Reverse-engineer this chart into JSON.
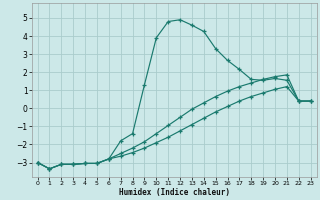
{
  "xlabel": "Humidex (Indice chaleur)",
  "xlim": [
    -0.5,
    23.5
  ],
  "ylim": [
    -3.8,
    5.8
  ],
  "xticks": [
    0,
    1,
    2,
    3,
    4,
    5,
    6,
    7,
    8,
    9,
    10,
    11,
    12,
    13,
    14,
    15,
    16,
    17,
    18,
    19,
    20,
    21,
    22,
    23
  ],
  "yticks": [
    -3,
    -2,
    -1,
    0,
    1,
    2,
    3,
    4,
    5
  ],
  "bg_color": "#cce8e8",
  "grid_color": "#aacccc",
  "line_color": "#1a7a6e",
  "line1_x": [
    0,
    1,
    2,
    3,
    4,
    5,
    6,
    7,
    8,
    9,
    10,
    11,
    12,
    13,
    14,
    15,
    16,
    17,
    18,
    19,
    20,
    21,
    22,
    23
  ],
  "line1_y": [
    -3.0,
    -3.35,
    -3.1,
    -3.1,
    -3.05,
    -3.05,
    -2.8,
    -1.8,
    -1.4,
    1.3,
    3.9,
    4.8,
    4.9,
    4.6,
    4.25,
    3.3,
    2.65,
    2.15,
    1.6,
    1.55,
    1.65,
    1.55,
    0.4,
    0.4
  ],
  "line2_x": [
    0,
    1,
    2,
    3,
    4,
    5,
    6,
    7,
    8,
    9,
    10,
    11,
    12,
    13,
    14,
    15,
    16,
    17,
    18,
    19,
    20,
    21,
    22,
    23
  ],
  "line2_y": [
    -3.0,
    -3.35,
    -3.1,
    -3.1,
    -3.05,
    -3.05,
    -2.8,
    -2.5,
    -2.2,
    -1.85,
    -1.4,
    -0.95,
    -0.5,
    -0.05,
    0.3,
    0.65,
    0.95,
    1.2,
    1.4,
    1.6,
    1.75,
    1.85,
    0.4,
    0.4
  ],
  "line3_x": [
    0,
    1,
    2,
    3,
    4,
    5,
    6,
    7,
    8,
    9,
    10,
    11,
    12,
    13,
    14,
    15,
    16,
    17,
    18,
    19,
    20,
    21,
    22,
    23
  ],
  "line3_y": [
    -3.0,
    -3.35,
    -3.1,
    -3.1,
    -3.05,
    -3.05,
    -2.8,
    -2.65,
    -2.45,
    -2.2,
    -1.9,
    -1.6,
    -1.25,
    -0.9,
    -0.55,
    -0.2,
    0.1,
    0.4,
    0.65,
    0.85,
    1.05,
    1.2,
    0.4,
    0.4
  ]
}
